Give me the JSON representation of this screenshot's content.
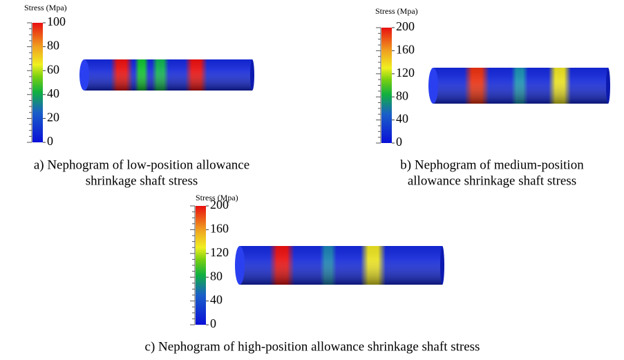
{
  "panels": [
    {
      "legend_title": "Stress (Mpa)",
      "ticks": [
        100,
        80,
        60,
        40,
        20,
        0
      ],
      "caption": [
        "a) Nephogram of low-position allowance",
        "shrinkage shaft stress"
      ]
    },
    {
      "legend_title": "Stress (Mpa)",
      "ticks": [
        200,
        160,
        120,
        80,
        40,
        0
      ],
      "caption": [
        "b) Nephogram of medium-position",
        "allowance shrinkage shaft stress"
      ]
    },
    {
      "legend_title": "Stress (Mpa)",
      "ticks": [
        200,
        160,
        120,
        80,
        40,
        0
      ],
      "caption": [
        "c) Nephogram of high-position allowance shrinkage shaft stress"
      ]
    }
  ]
}
